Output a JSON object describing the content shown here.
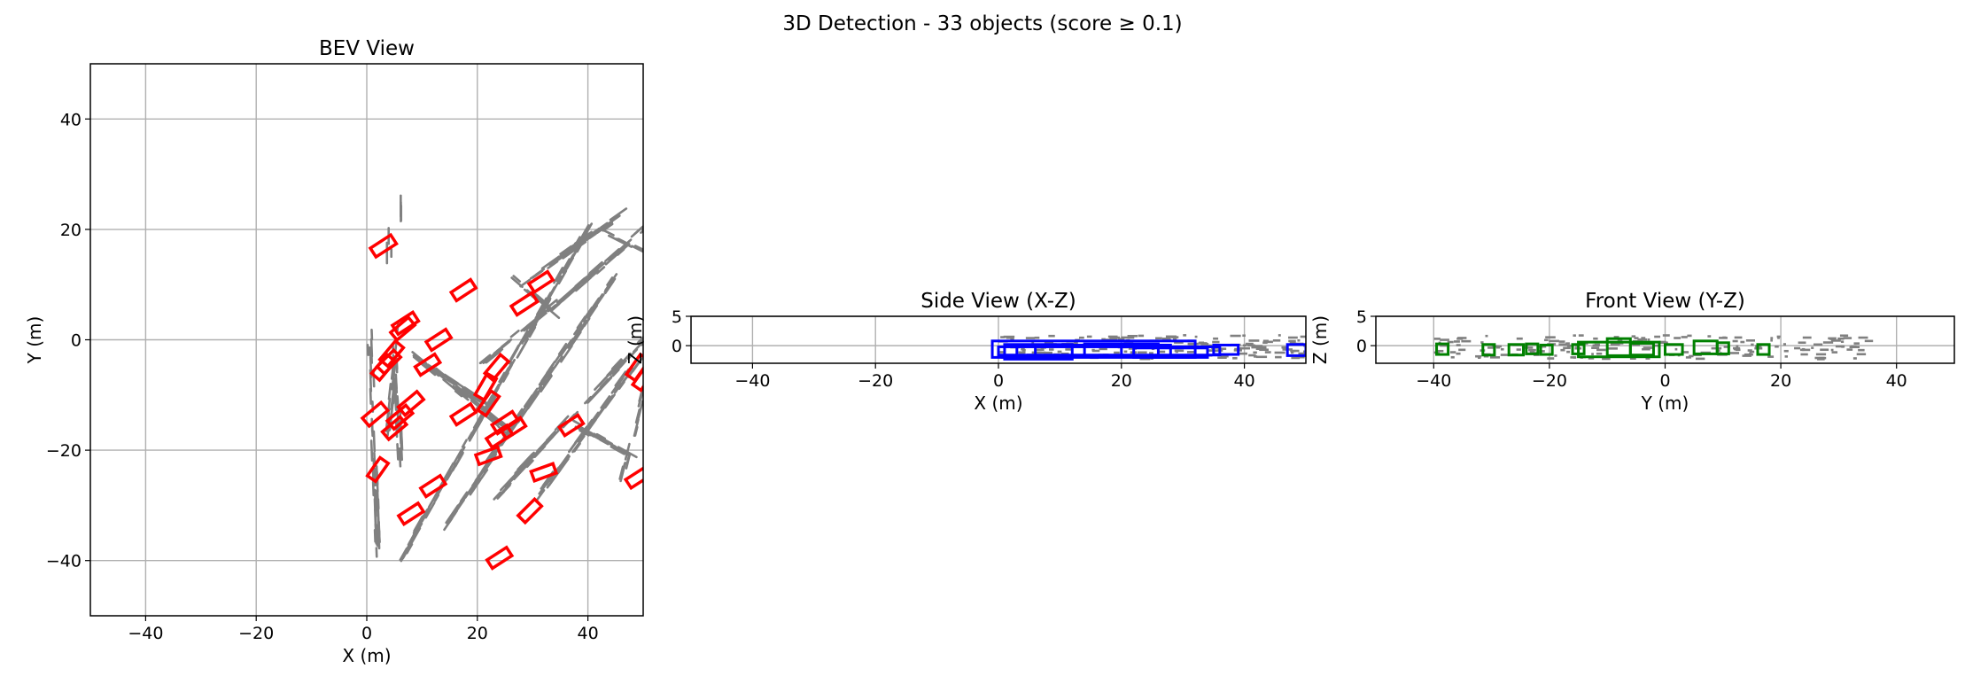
{
  "figure": {
    "suptitle": "3D Detection - 33 objects (score ≥ 0.1)"
  },
  "colors": {
    "points": "#808080",
    "bev_boxes": "#ff0000",
    "side_boxes": "#0000ff",
    "front_boxes": "#008000",
    "grid": "#b0b0b0"
  },
  "chart_data": [
    {
      "id": "bev",
      "type": "scatter",
      "title": "BEV View",
      "xlabel": "X (m)",
      "ylabel": "Y (m)",
      "xlim": [
        -50,
        50
      ],
      "ylim": [
        -50,
        50
      ],
      "xticks": [
        -40,
        -20,
        0,
        20,
        40
      ],
      "yticks": [
        -40,
        -20,
        0,
        20,
        40
      ],
      "grid": true,
      "point_series": [
        {
          "from": [
            0.5,
            2
          ],
          "to": [
            2,
            -38
          ],
          "count": 45
        },
        {
          "from": [
            5,
            1
          ],
          "to": [
            6,
            -20
          ],
          "count": 22
        },
        {
          "from": [
            6,
            3
          ],
          "to": [
            4,
            -15
          ],
          "count": 18
        },
        {
          "from": [
            8,
            -2
          ],
          "to": [
            25,
            -16
          ],
          "count": 40
        },
        {
          "from": [
            10,
            -4
          ],
          "to": [
            22,
            -12
          ],
          "count": 20
        },
        {
          "from": [
            6,
            -40
          ],
          "to": [
            40,
            20
          ],
          "count": 110
        },
        {
          "from": [
            14,
            -34
          ],
          "to": [
            44,
            10
          ],
          "count": 80
        },
        {
          "from": [
            22,
            -30
          ],
          "to": [
            50,
            0
          ],
          "count": 60
        },
        {
          "from": [
            30,
            -30
          ],
          "to": [
            48,
            -5
          ],
          "count": 40
        },
        {
          "from": [
            28,
            10
          ],
          "to": [
            45,
            22
          ],
          "count": 35
        },
        {
          "from": [
            33,
            5
          ],
          "to": [
            50,
            20
          ],
          "count": 35
        },
        {
          "from": [
            46,
            -26
          ],
          "to": [
            50,
            -10
          ],
          "count": 15
        },
        {
          "from": [
            37,
            -15
          ],
          "to": [
            46,
            -20
          ],
          "count": 18
        },
        {
          "from": [
            26,
            12
          ],
          "to": [
            33,
            6
          ],
          "count": 14
        },
        {
          "from": [
            20,
            -5
          ],
          "to": [
            36,
            8
          ],
          "count": 25
        },
        {
          "from": [
            6,
            28
          ],
          "to": [
            6,
            24
          ],
          "count": 3
        },
        {
          "from": [
            4,
            20
          ],
          "to": [
            4,
            16
          ],
          "count": 3
        },
        {
          "from": [
            42,
            20
          ],
          "to": [
            50,
            16
          ],
          "count": 10
        }
      ],
      "boxes": [
        {
          "x": 3,
          "y": 17,
          "l": 4.4,
          "w": 1.9,
          "yaw": 33
        },
        {
          "x": 17.5,
          "y": 9,
          "l": 4.2,
          "w": 1.8,
          "yaw": 33
        },
        {
          "x": 28.5,
          "y": 6.5,
          "l": 4.4,
          "w": 1.9,
          "yaw": 33
        },
        {
          "x": 31.5,
          "y": 10.5,
          "l": 4,
          "w": 1.8,
          "yaw": 33
        },
        {
          "x": 7,
          "y": 3,
          "l": 4.4,
          "w": 1.9,
          "yaw": 33
        },
        {
          "x": 13,
          "y": 0,
          "l": 4.2,
          "w": 1.8,
          "yaw": 33
        },
        {
          "x": 4.5,
          "y": -2.5,
          "l": 4.4,
          "w": 1.9,
          "yaw": 50
        },
        {
          "x": 3,
          "y": -5,
          "l": 4.4,
          "w": 1.9,
          "yaw": 50
        },
        {
          "x": 11,
          "y": -4.5,
          "l": 4.2,
          "w": 1.8,
          "yaw": 33
        },
        {
          "x": 23.5,
          "y": -5,
          "l": 4.4,
          "w": 1.9,
          "yaw": 50
        },
        {
          "x": 21.5,
          "y": -8.5,
          "l": 4.4,
          "w": 1.9,
          "yaw": 60
        },
        {
          "x": 22,
          "y": -11.5,
          "l": 4.2,
          "w": 1.8,
          "yaw": 55
        },
        {
          "x": 8,
          "y": -11.5,
          "l": 4.4,
          "w": 1.9,
          "yaw": 40
        },
        {
          "x": 6,
          "y": -14,
          "l": 4.4,
          "w": 1.9,
          "yaw": 40
        },
        {
          "x": 17.5,
          "y": -13.5,
          "l": 4.2,
          "w": 1.8,
          "yaw": 33
        },
        {
          "x": 1.5,
          "y": -13.5,
          "l": 4.4,
          "w": 1.9,
          "yaw": 40
        },
        {
          "x": 5,
          "y": -16,
          "l": 4.2,
          "w": 1.8,
          "yaw": 40
        },
        {
          "x": 25,
          "y": -15,
          "l": 4.4,
          "w": 1.9,
          "yaw": 33
        },
        {
          "x": 24,
          "y": -17.5,
          "l": 4.4,
          "w": 1.9,
          "yaw": 33
        },
        {
          "x": 26.5,
          "y": -16,
          "l": 4.2,
          "w": 1.8,
          "yaw": 33
        },
        {
          "x": 37,
          "y": -15.5,
          "l": 4,
          "w": 1.8,
          "yaw": 33
        },
        {
          "x": 22,
          "y": -21,
          "l": 4.2,
          "w": 1.8,
          "yaw": 20
        },
        {
          "x": 2,
          "y": -23.5,
          "l": 4,
          "w": 1.8,
          "yaw": 55
        },
        {
          "x": 32,
          "y": -24,
          "l": 4.2,
          "w": 1.8,
          "yaw": 20
        },
        {
          "x": 12,
          "y": -26.5,
          "l": 4.2,
          "w": 1.8,
          "yaw": 33
        },
        {
          "x": 49,
          "y": -25,
          "l": 4,
          "w": 1.8,
          "yaw": 33
        },
        {
          "x": 49,
          "y": -5,
          "l": 4.4,
          "w": 1.9,
          "yaw": 55
        },
        {
          "x": 50,
          "y": -7,
          "l": 4,
          "w": 1.8,
          "yaw": 55
        },
        {
          "x": 8,
          "y": -31.5,
          "l": 4.2,
          "w": 1.8,
          "yaw": 33
        },
        {
          "x": 29.5,
          "y": -31,
          "l": 4.2,
          "w": 1.8,
          "yaw": 45
        },
        {
          "x": 24,
          "y": -39.5,
          "l": 4.2,
          "w": 1.8,
          "yaw": 33
        },
        {
          "x": 6.5,
          "y": 2,
          "l": 4.2,
          "w": 1.8,
          "yaw": 40
        },
        {
          "x": 4,
          "y": -4,
          "l": 4.2,
          "w": 1.8,
          "yaw": 45
        }
      ]
    },
    {
      "id": "side",
      "type": "scatter",
      "title": "Side View (X-Z)",
      "xlabel": "X (m)",
      "ylabel": "Z (m)",
      "xlim": [
        -50,
        50
      ],
      "ylim": [
        -3,
        5
      ],
      "xticks": [
        -40,
        -20,
        0,
        20,
        40
      ],
      "yticks": [
        0,
        5
      ],
      "grid": true,
      "point_band": {
        "x": [
          0,
          50
        ],
        "z": [
          -2.3,
          1.8
        ],
        "count": 180
      },
      "boxes": [
        {
          "x0": -1,
          "x1": 32,
          "z0": -2,
          "z1": 0.8
        },
        {
          "x0": 0,
          "x1": 36,
          "z0": -1.6,
          "z1": -0.2
        },
        {
          "x0": 1,
          "x1": 12,
          "z0": -2.3,
          "z1": 0.2
        },
        {
          "x0": 3,
          "x1": 20,
          "z0": -1.8,
          "z1": 0
        },
        {
          "x0": 6,
          "x1": 28,
          "z0": -1.9,
          "z1": 0.1
        },
        {
          "x0": 14,
          "x1": 26,
          "z0": -1.7,
          "z1": 0.3
        },
        {
          "x0": 35,
          "x1": 39,
          "z0": -1.5,
          "z1": 0.1
        },
        {
          "x0": 47,
          "x1": 50,
          "z0": -1.7,
          "z1": 0.2
        },
        {
          "x0": 22,
          "x1": 34,
          "z0": -2,
          "z1": -0.4
        }
      ]
    },
    {
      "id": "front",
      "type": "scatter",
      "title": "Front View (Y-Z)",
      "xlabel": "Y (m)",
      "ylabel": "Z (m)",
      "xlim": [
        -50,
        50
      ],
      "ylim": [
        -3,
        5
      ],
      "xticks": [
        -40,
        -20,
        0,
        20,
        40
      ],
      "yticks": [
        0,
        5
      ],
      "grid": true,
      "point_band": {
        "y": [
          -40,
          35
        ],
        "z": [
          -2.3,
          1.8
        ],
        "count": 180
      },
      "boxes": [
        {
          "y0": -39.5,
          "y1": -37.5,
          "z0": -1.5,
          "z1": 0.3
        },
        {
          "y0": -31.5,
          "y1": -29.5,
          "z0": -1.6,
          "z1": 0.2
        },
        {
          "y0": -27,
          "y1": -24.5,
          "z0": -1.6,
          "z1": 0.2
        },
        {
          "y0": -24,
          "y1": -22,
          "z0": -1.4,
          "z1": 0.3
        },
        {
          "y0": -21.5,
          "y1": -19.5,
          "z0": -1.5,
          "z1": 0.1
        },
        {
          "y0": -16,
          "y1": -14,
          "z0": -1.4,
          "z1": 0.2
        },
        {
          "y0": -15,
          "y1": -1,
          "z0": -1.9,
          "z1": 0.6
        },
        {
          "y0": -10,
          "y1": -6,
          "z0": -1.7,
          "z1": 1.2
        },
        {
          "y0": -6,
          "y1": -2,
          "z0": -1.6,
          "z1": 0.4
        },
        {
          "y0": 0,
          "y1": 3,
          "z0": -1.5,
          "z1": 0.2
        },
        {
          "y0": 5,
          "y1": 9,
          "z0": -1.4,
          "z1": 0.8
        },
        {
          "y0": 9,
          "y1": 11,
          "z0": -1.4,
          "z1": 0.5
        },
        {
          "y0": 16,
          "y1": 18,
          "z0": -1.5,
          "z1": 0.2
        }
      ]
    }
  ]
}
